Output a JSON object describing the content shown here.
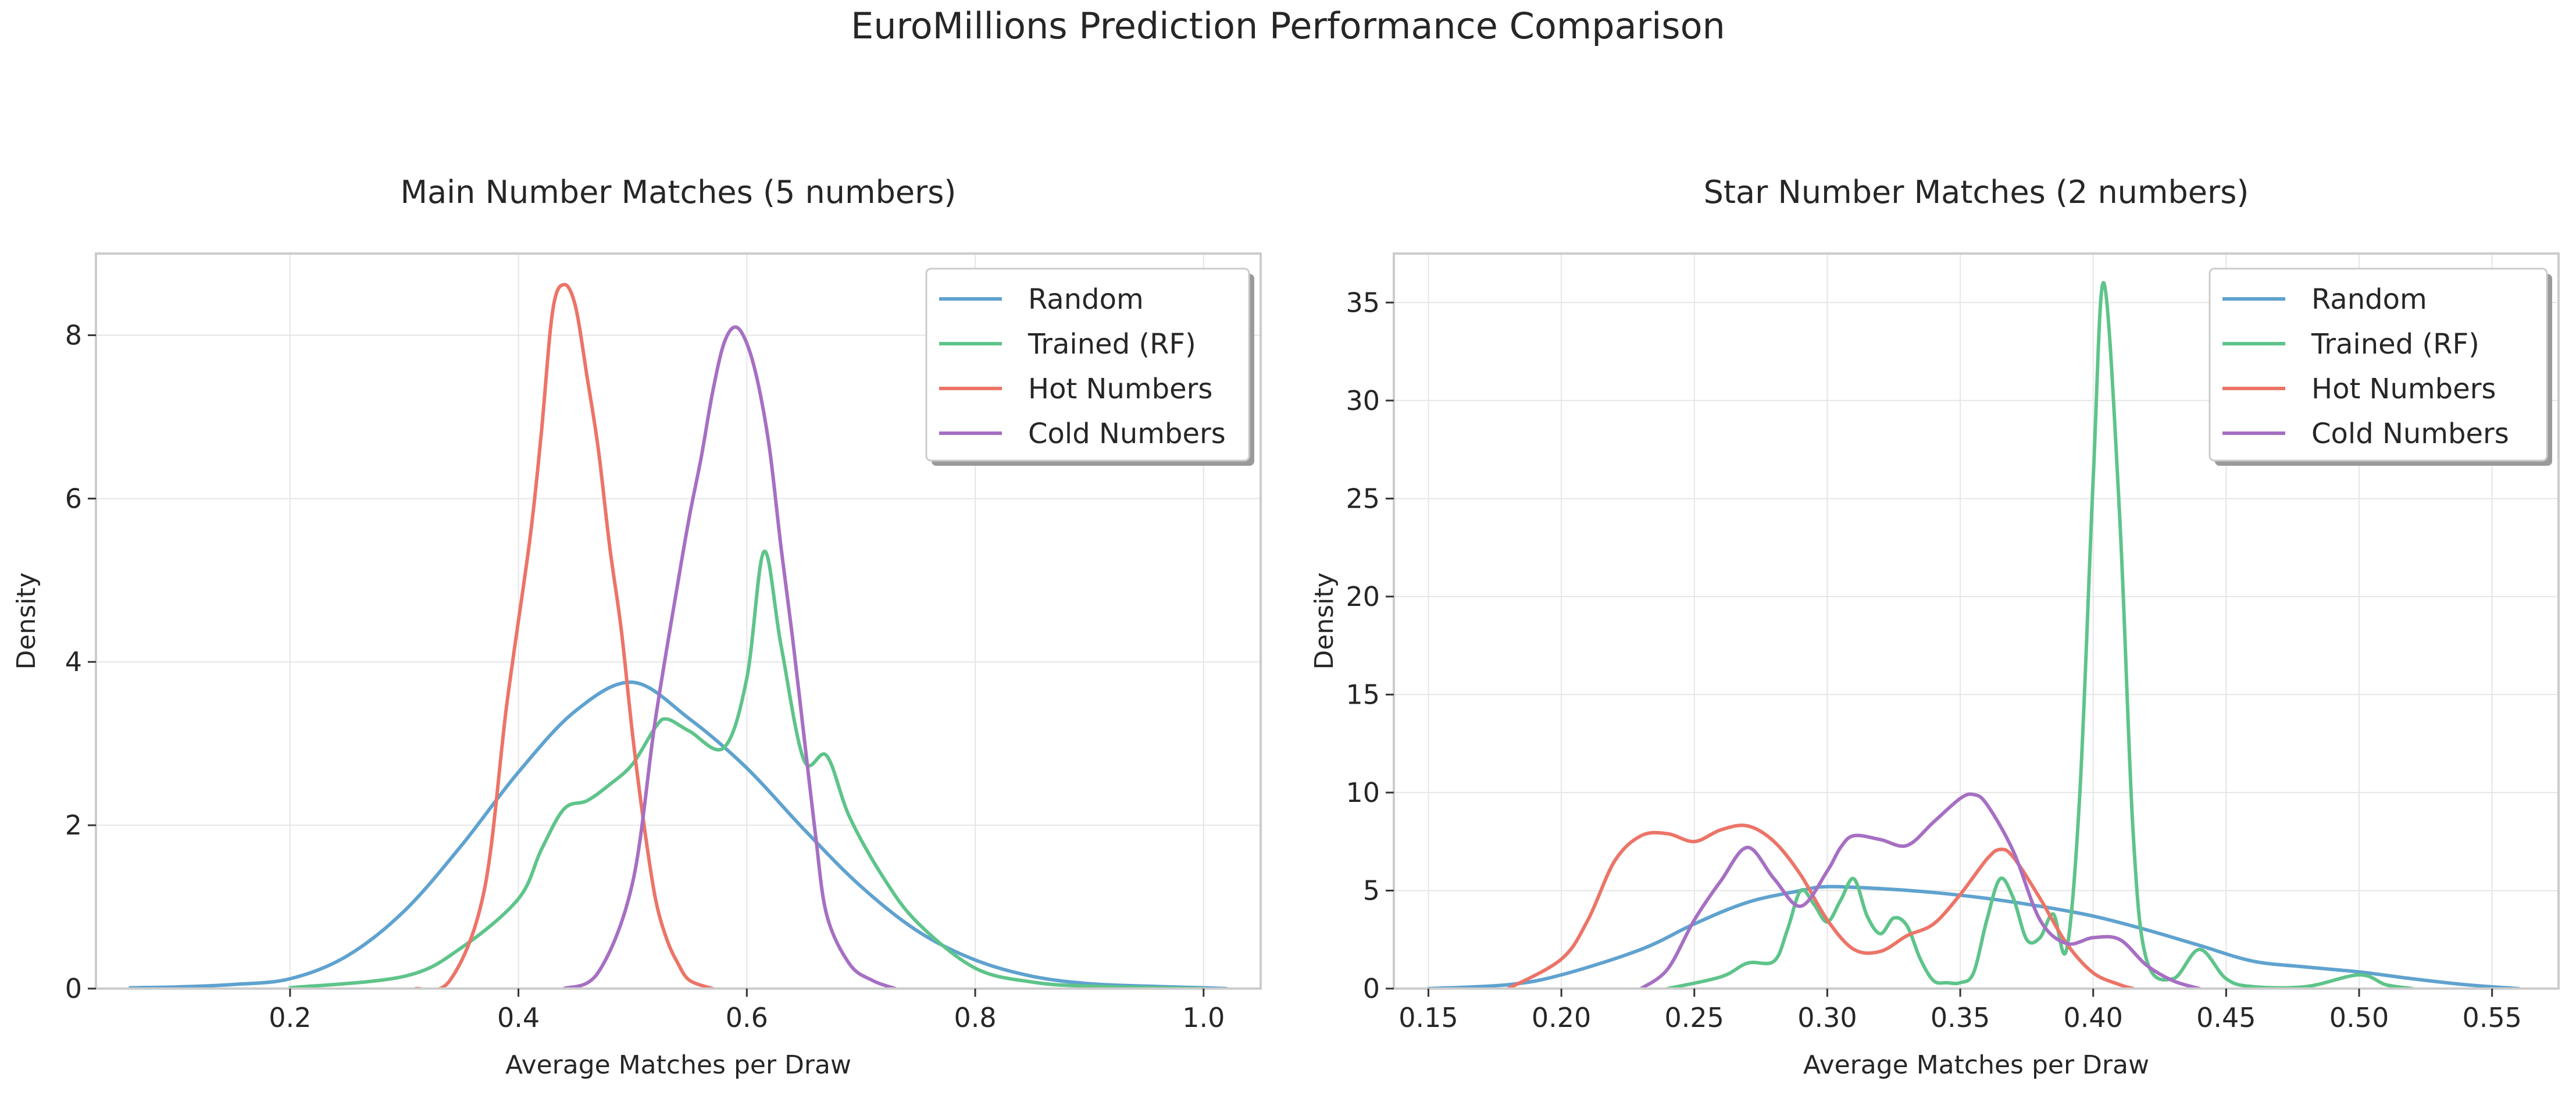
{
  "figure": {
    "title": "EuroMillions Prediction Performance Comparison"
  },
  "colors": {
    "Random": "#5fa2cf",
    "Trained (RF)": "#5ec48a",
    "Hot Numbers": "#ec7467",
    "Cold Numbers": "#a66fc3"
  },
  "chart_data": [
    {
      "type": "line",
      "title": "Main Number Matches (5 numbers)",
      "xlabel": "Average Matches per Draw",
      "ylabel": "Density",
      "xlim": [
        0.03,
        1.05
      ],
      "ylim": [
        0,
        9.0
      ],
      "xticks": [
        0.2,
        0.4,
        0.6,
        0.8,
        1.0
      ],
      "yticks": [
        0,
        2,
        4,
        6,
        8
      ],
      "grid": true,
      "legend_position": "upper right",
      "series": [
        {
          "name": "Random",
          "x": [
            0.06,
            0.1,
            0.15,
            0.2,
            0.25,
            0.3,
            0.35,
            0.4,
            0.45,
            0.5,
            0.55,
            0.6,
            0.65,
            0.7,
            0.75,
            0.8,
            0.85,
            0.9,
            0.95,
            1.0,
            1.02
          ],
          "y": [
            0.01,
            0.02,
            0.05,
            0.12,
            0.4,
            0.95,
            1.75,
            2.65,
            3.4,
            3.75,
            3.3,
            2.7,
            1.95,
            1.25,
            0.7,
            0.35,
            0.15,
            0.06,
            0.03,
            0.01,
            0.0
          ]
        },
        {
          "name": "Trained (RF)",
          "x": [
            0.2,
            0.3,
            0.35,
            0.4,
            0.42,
            0.44,
            0.46,
            0.48,
            0.5,
            0.52,
            0.53,
            0.55,
            0.58,
            0.6,
            0.615,
            0.63,
            0.65,
            0.67,
            0.69,
            0.72,
            0.75,
            0.8,
            0.85,
            0.9,
            1.0
          ],
          "y": [
            0.01,
            0.15,
            0.5,
            1.1,
            1.7,
            2.2,
            2.3,
            2.5,
            2.75,
            3.2,
            3.3,
            3.15,
            2.95,
            3.8,
            5.35,
            4.2,
            2.8,
            2.85,
            2.1,
            1.35,
            0.8,
            0.25,
            0.08,
            0.03,
            0.0
          ]
        },
        {
          "name": "Hot Numbers",
          "x": [
            0.31,
            0.34,
            0.37,
            0.39,
            0.41,
            0.42,
            0.43,
            0.44,
            0.45,
            0.46,
            0.47,
            0.48,
            0.49,
            0.5,
            0.51,
            0.52,
            0.53,
            0.54,
            0.55,
            0.57
          ],
          "y": [
            0.0,
            0.1,
            1.2,
            3.5,
            5.5,
            6.8,
            8.3,
            8.62,
            8.35,
            7.5,
            6.6,
            5.4,
            4.4,
            3.1,
            2.0,
            1.1,
            0.6,
            0.3,
            0.1,
            0.0
          ]
        },
        {
          "name": "Cold Numbers",
          "x": [
            0.44,
            0.47,
            0.5,
            0.52,
            0.54,
            0.55,
            0.56,
            0.57,
            0.58,
            0.59,
            0.6,
            0.61,
            0.62,
            0.63,
            0.64,
            0.65,
            0.66,
            0.67,
            0.69,
            0.71,
            0.73
          ],
          "y": [
            0.0,
            0.2,
            1.3,
            3.3,
            5.0,
            5.8,
            6.5,
            7.3,
            7.9,
            8.1,
            7.9,
            7.4,
            6.6,
            5.4,
            4.3,
            3.1,
            1.9,
            0.9,
            0.3,
            0.1,
            0.0
          ]
        }
      ]
    },
    {
      "type": "line",
      "title": "Star Number Matches (2 numbers)",
      "xlabel": "Average Matches per Draw",
      "ylabel": "Density",
      "xlim": [
        0.137,
        0.575
      ],
      "ylim": [
        0,
        37.5
      ],
      "xticks": [
        0.15,
        0.2,
        0.25,
        0.3,
        0.35,
        0.4,
        0.45,
        0.5,
        0.55
      ],
      "yticks": [
        0,
        5,
        10,
        15,
        20,
        25,
        30,
        35
      ],
      "grid": true,
      "legend_position": "upper right",
      "series": [
        {
          "name": "Random",
          "x": [
            0.15,
            0.18,
            0.2,
            0.23,
            0.25,
            0.27,
            0.29,
            0.3,
            0.32,
            0.34,
            0.36,
            0.38,
            0.4,
            0.42,
            0.44,
            0.46,
            0.48,
            0.5,
            0.52,
            0.54,
            0.56
          ],
          "y": [
            0.0,
            0.2,
            0.7,
            2.0,
            3.3,
            4.4,
            5.0,
            5.2,
            5.1,
            4.9,
            4.6,
            4.2,
            3.7,
            3.0,
            2.2,
            1.4,
            1.1,
            0.85,
            0.5,
            0.2,
            0.0
          ]
        },
        {
          "name": "Trained (RF)",
          "x": [
            0.24,
            0.26,
            0.27,
            0.28,
            0.285,
            0.29,
            0.295,
            0.3,
            0.305,
            0.31,
            0.315,
            0.32,
            0.325,
            0.33,
            0.335,
            0.34,
            0.345,
            0.35,
            0.355,
            0.36,
            0.365,
            0.37,
            0.375,
            0.38,
            0.385,
            0.39,
            0.395,
            0.4,
            0.404,
            0.41,
            0.415,
            0.42,
            0.43,
            0.44,
            0.45,
            0.46,
            0.48,
            0.5,
            0.51,
            0.52
          ],
          "y": [
            0.0,
            0.6,
            1.3,
            1.4,
            3.0,
            5.0,
            4.3,
            3.4,
            4.5,
            5.6,
            3.7,
            2.8,
            3.6,
            3.2,
            1.5,
            0.4,
            0.3,
            0.3,
            0.8,
            3.5,
            5.6,
            4.6,
            2.5,
            2.6,
            3.8,
            2.0,
            10.0,
            26.0,
            36.0,
            24.0,
            8.0,
            1.5,
            0.5,
            2.0,
            0.5,
            0.1,
            0.1,
            0.7,
            0.2,
            0.0
          ]
        },
        {
          "name": "Hot Numbers",
          "x": [
            0.18,
            0.2,
            0.21,
            0.22,
            0.23,
            0.24,
            0.25,
            0.26,
            0.27,
            0.28,
            0.29,
            0.3,
            0.31,
            0.32,
            0.33,
            0.34,
            0.35,
            0.36,
            0.365,
            0.37,
            0.38,
            0.39,
            0.4,
            0.41,
            0.415
          ],
          "y": [
            0.0,
            1.5,
            3.5,
            6.5,
            7.8,
            7.9,
            7.5,
            8.1,
            8.3,
            7.5,
            5.8,
            3.5,
            2.0,
            1.9,
            2.7,
            3.3,
            4.8,
            6.6,
            7.1,
            6.7,
            4.6,
            2.3,
            0.8,
            0.2,
            0.0
          ]
        },
        {
          "name": "Cold Numbers",
          "x": [
            0.23,
            0.24,
            0.25,
            0.26,
            0.27,
            0.28,
            0.29,
            0.3,
            0.305,
            0.31,
            0.32,
            0.33,
            0.34,
            0.35,
            0.355,
            0.36,
            0.37,
            0.38,
            0.39,
            0.4,
            0.41,
            0.42,
            0.43,
            0.44
          ],
          "y": [
            0.0,
            1.0,
            3.5,
            5.5,
            7.2,
            5.6,
            4.2,
            6.0,
            7.2,
            7.8,
            7.6,
            7.3,
            8.5,
            9.7,
            9.9,
            9.4,
            7.0,
            3.5,
            2.3,
            2.6,
            2.5,
            1.2,
            0.4,
            0.0
          ]
        }
      ]
    }
  ]
}
